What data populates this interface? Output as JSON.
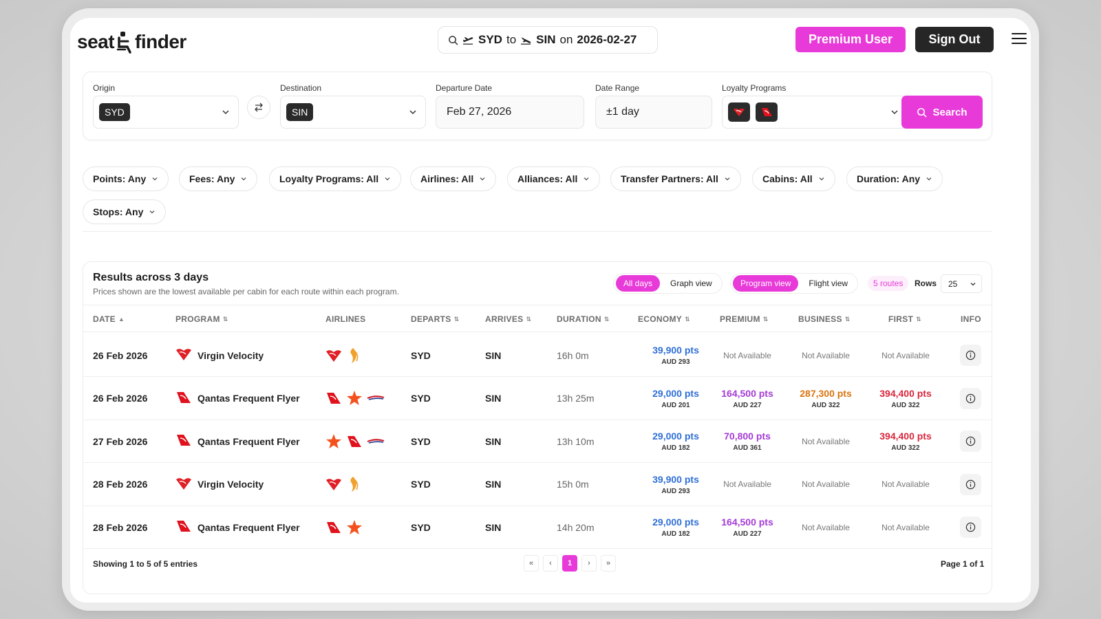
{
  "header": {
    "logo_left": "seat",
    "logo_right": "finder",
    "route": {
      "origin": "SYD",
      "to": "to",
      "destination": "SIN",
      "on": "on",
      "date": "2026-02-27"
    },
    "premium_label": "Premium User",
    "signout_label": "Sign Out"
  },
  "search": {
    "origin_label": "Origin",
    "origin_value": "SYD",
    "destination_label": "Destination",
    "destination_value": "SIN",
    "departure_label": "Departure Date",
    "departure_value": "Feb 27, 2026",
    "range_label": "Date Range",
    "range_value": "±1 day",
    "loyalty_label": "Loyalty Programs",
    "search_label": "Search"
  },
  "filters": [
    "Points: Any",
    "Fees: Any",
    "Loyalty Programs: All",
    "Airlines: All",
    "Alliances: All",
    "Transfer Partners: All",
    "Cabins: All",
    "Duration: Any",
    "Stops: Any"
  ],
  "results": {
    "title": "Results across 3 days",
    "subtitle": "Prices shown are the lowest available per cabin for each route within each program.",
    "view_toggle": [
      "All days",
      "Graph view"
    ],
    "mode_toggle": [
      "Program view",
      "Flight view"
    ],
    "routes_badge": "5 routes",
    "rows_label": "Rows",
    "rows_value": "25",
    "columns": {
      "date": "DATE",
      "program": "PROGRAM",
      "airlines": "AIRLINES",
      "departs": "DEPARTS",
      "arrives": "ARRIVES",
      "duration": "DURATION",
      "economy": "ECONOMY",
      "premium": "PREMIUM",
      "business": "BUSINESS",
      "first": "FIRST",
      "info": "INFO"
    },
    "rows": [
      {
        "date": "26 Feb 2026",
        "program": "Virgin Velocity",
        "program_icon": "virgin",
        "airlines": [
          "virgin",
          "singapore"
        ],
        "departs": "SYD",
        "arrives": "SIN",
        "duration": "16h 0m",
        "economy": {
          "pts": "39,900 pts",
          "aud": "AUD 293"
        },
        "premium": {
          "na": "Not Available"
        },
        "business": {
          "na": "Not Available"
        },
        "first": {
          "na": "Not Available"
        }
      },
      {
        "date": "26 Feb 2026",
        "program": "Qantas Frequent Flyer",
        "program_icon": "qantas",
        "airlines": [
          "qantas",
          "jetstar",
          "british"
        ],
        "departs": "SYD",
        "arrives": "SIN",
        "duration": "13h 25m",
        "economy": {
          "pts": "29,000 pts",
          "aud": "AUD 201"
        },
        "premium": {
          "pts": "164,500 pts",
          "aud": "AUD 227"
        },
        "business": {
          "pts": "287,300 pts",
          "aud": "AUD 322"
        },
        "first": {
          "pts": "394,400 pts",
          "aud": "AUD 322"
        }
      },
      {
        "date": "27 Feb 2026",
        "program": "Qantas Frequent Flyer",
        "program_icon": "qantas",
        "airlines": [
          "jetstar",
          "qantas",
          "british"
        ],
        "departs": "SYD",
        "arrives": "SIN",
        "duration": "13h 10m",
        "economy": {
          "pts": "29,000 pts",
          "aud": "AUD 182"
        },
        "premium": {
          "pts": "70,800 pts",
          "aud": "AUD 361"
        },
        "business": {
          "na": "Not Available"
        },
        "first": {
          "pts": "394,400 pts",
          "aud": "AUD 322"
        }
      },
      {
        "date": "28 Feb 2026",
        "program": "Virgin Velocity",
        "program_icon": "virgin",
        "airlines": [
          "virgin",
          "singapore"
        ],
        "departs": "SYD",
        "arrives": "SIN",
        "duration": "15h 0m",
        "economy": {
          "pts": "39,900 pts",
          "aud": "AUD 293"
        },
        "premium": {
          "na": "Not Available"
        },
        "business": {
          "na": "Not Available"
        },
        "first": {
          "na": "Not Available"
        }
      },
      {
        "date": "28 Feb 2026",
        "program": "Qantas Frequent Flyer",
        "program_icon": "qantas",
        "airlines": [
          "qantas",
          "jetstar"
        ],
        "departs": "SYD",
        "arrives": "SIN",
        "duration": "14h 20m",
        "economy": {
          "pts": "29,000 pts",
          "aud": "AUD 182"
        },
        "premium": {
          "pts": "164,500 pts",
          "aud": "AUD 227"
        },
        "business": {
          "na": "Not Available"
        },
        "first": {
          "na": "Not Available"
        }
      }
    ],
    "showing": "Showing 1 to 5 of 5 entries",
    "pager": [
      "«",
      "‹",
      "1",
      "›",
      "»"
    ],
    "page_of": "Page 1 of 1"
  },
  "colors": {
    "accent": "#e83ad8",
    "economy": "#2f6fd6",
    "premium": "#a43ad6",
    "business": "#d9740e",
    "first": "#d8263c"
  }
}
